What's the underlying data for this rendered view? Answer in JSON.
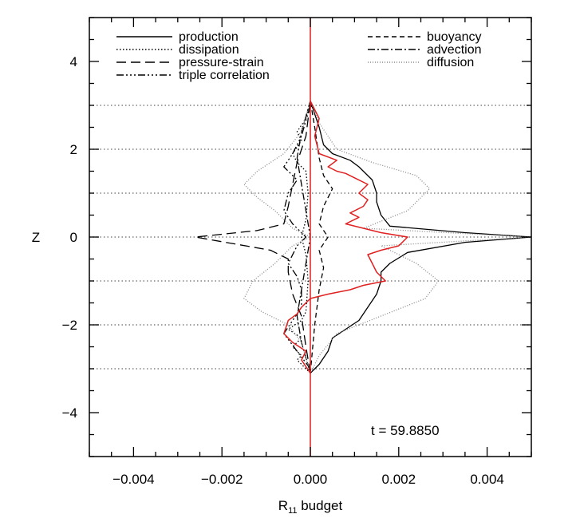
{
  "chart_data": {
    "type": "line",
    "xlabel": "R",
    "xlabel_sub": "11",
    "xlabel_suffix": " budget",
    "ylabel": "Z",
    "xlim": [
      -0.005,
      0.005
    ],
    "ylim": [
      -5,
      5
    ],
    "x_ticks": [
      -0.004,
      -0.002,
      0.0,
      0.002,
      0.004
    ],
    "x_tick_labels": [
      "−0.004",
      "−0.002",
      "0.000",
      "0.002",
      "0.004"
    ],
    "y_ticks": [
      -4,
      -2,
      0,
      2,
      4
    ],
    "y_tick_labels": [
      "−4",
      "−2",
      "0",
      "2",
      "4"
    ],
    "reference_lines_z": [
      -3,
      -2,
      -1,
      0,
      1,
      2,
      3
    ],
    "annotation": "t = 59.8850",
    "legend_placement": "top",
    "series": [
      {
        "name": "production",
        "style": "solid",
        "color": "#000000",
        "points": [
          [
            0,
            -3.1
          ],
          [
            0.0002,
            -2.9
          ],
          [
            0.0004,
            -2.6
          ],
          [
            0.0005,
            -2.3
          ],
          [
            0.0008,
            -2.1
          ],
          [
            0.0011,
            -1.9
          ],
          [
            0.0013,
            -1.6
          ],
          [
            0.0015,
            -1.3
          ],
          [
            0.0016,
            -1.0
          ],
          [
            0.0016,
            -0.8
          ],
          [
            0.0018,
            -0.6
          ],
          [
            0.0022,
            -0.35
          ],
          [
            0.0035,
            -0.12
          ],
          [
            0.005,
            0
          ],
          [
            0.0035,
            0.1
          ],
          [
            0.0018,
            0.25
          ],
          [
            0.0016,
            0.5
          ],
          [
            0.0015,
            0.8
          ],
          [
            0.0015,
            1.0
          ],
          [
            0.0014,
            1.3
          ],
          [
            0.0011,
            1.6
          ],
          [
            0.0009,
            1.75
          ],
          [
            0.0005,
            1.9
          ],
          [
            0.0003,
            2.1
          ],
          [
            0.0002,
            2.5
          ],
          [
            0,
            3.1
          ]
        ]
      },
      {
        "name": "dissipation",
        "style": "dotted",
        "color": "#000000",
        "points": [
          [
            0,
            -3.1
          ],
          [
            -0.0003,
            -2.8
          ],
          [
            -0.0002,
            -2.7
          ],
          [
            -0.0004,
            -2.5
          ],
          [
            -0.0002,
            -2.3
          ],
          [
            -0.0005,
            -2.1
          ],
          [
            -0.0002,
            -1.9
          ],
          [
            -0.0001,
            -1.7
          ],
          [
            -5e-05,
            -1.0
          ],
          [
            -0.0001,
            -0.4
          ],
          [
            -0.0002,
            0
          ],
          [
            -0.0001,
            0.4
          ],
          [
            -5e-05,
            1.0
          ],
          [
            -0.0001,
            1.5
          ],
          [
            -0.0003,
            1.7
          ],
          [
            -0.0004,
            1.9
          ],
          [
            -0.0002,
            2.2
          ],
          [
            -0.0003,
            2.4
          ],
          [
            -0.0001,
            2.7
          ],
          [
            0,
            3.1
          ]
        ]
      },
      {
        "name": "pressure-strain",
        "style": "longdash",
        "color": "#000000",
        "points": [
          [
            0,
            -3.1
          ],
          [
            -0.0001,
            -2.5
          ],
          [
            -0.0002,
            -1.8
          ],
          [
            -0.0004,
            -1.3
          ],
          [
            -0.0005,
            -0.8
          ],
          [
            -0.0005,
            -0.5
          ],
          [
            -0.0009,
            -0.3
          ],
          [
            -0.0026,
            0
          ],
          [
            -0.0012,
            0.15
          ],
          [
            -0.0006,
            0.3
          ],
          [
            -0.0005,
            0.7
          ],
          [
            -0.0004,
            1.2
          ],
          [
            -0.0003,
            1.7
          ],
          [
            -0.0001,
            2.3
          ],
          [
            0,
            3.1
          ]
        ]
      },
      {
        "name": "triple correlation",
        "style": "dashdotdot",
        "color": "#000000",
        "points": [
          [
            0,
            -3.0
          ],
          [
            -0.0003,
            -2.6
          ],
          [
            -0.0006,
            -2.2
          ],
          [
            -0.0004,
            -1.9
          ],
          [
            -0.0002,
            -1.6
          ],
          [
            -0.0002,
            -1.2
          ],
          [
            -0.0003,
            -0.9
          ],
          [
            -0.0005,
            -0.6
          ],
          [
            -0.0003,
            -0.2
          ],
          [
            -0.0001,
            0
          ],
          [
            -0.0004,
            0.3
          ],
          [
            -0.0006,
            0.6
          ],
          [
            -0.0005,
            1.0
          ],
          [
            -0.0003,
            1.3
          ],
          [
            -0.0006,
            1.6
          ],
          [
            -0.0004,
            1.9
          ],
          [
            -0.0002,
            2.3
          ],
          [
            0,
            3.0
          ]
        ]
      },
      {
        "name": "buoyancy",
        "style": "dash",
        "color": "#000000",
        "points": [
          [
            0,
            -3.1
          ],
          [
            0.0001,
            -2.0
          ],
          [
            0.0002,
            -1.2
          ],
          [
            0.0003,
            -0.7
          ],
          [
            0.0002,
            -0.3
          ],
          [
            0.0004,
            0
          ],
          [
            0.0002,
            0.3
          ],
          [
            0.0003,
            0.7
          ],
          [
            0.0005,
            1.1
          ],
          [
            0.0003,
            1.4
          ],
          [
            0.0002,
            1.8
          ],
          [
            0.0001,
            2.5
          ],
          [
            0,
            3.1
          ]
        ]
      },
      {
        "name": "advection",
        "style": "dashdot",
        "color": "#000000",
        "points": [
          [
            0,
            -3.1
          ],
          [
            -0.0002,
            -2.4
          ],
          [
            -0.0003,
            -1.8
          ],
          [
            -0.0002,
            -1.2
          ],
          [
            -0.0001,
            -0.6
          ],
          [
            0,
            0
          ],
          [
            -0.0001,
            0.6
          ],
          [
            -0.0002,
            1.2
          ],
          [
            -0.0003,
            1.8
          ],
          [
            -0.0002,
            2.4
          ],
          [
            0,
            3.1
          ]
        ]
      },
      {
        "name": "diffusion",
        "style": "finedot",
        "color": "#888888",
        "points": [
          [
            0,
            -3.1
          ],
          [
            -0.0002,
            -2.4
          ],
          [
            -0.0005,
            -2.0
          ],
          [
            -0.0011,
            -1.7
          ],
          [
            -0.0015,
            -1.4
          ],
          [
            -0.0013,
            -1.0
          ],
          [
            -0.0008,
            -0.6
          ],
          [
            -0.0004,
            -0.2
          ],
          [
            0,
            0
          ],
          [
            -0.0004,
            0.2
          ],
          [
            -0.0008,
            0.6
          ],
          [
            -0.0012,
            0.9
          ],
          [
            -0.0015,
            1.2
          ],
          [
            -0.0012,
            1.5
          ],
          [
            -0.0006,
            1.9
          ],
          [
            -0.0002,
            2.4
          ],
          [
            0,
            3.1
          ],
          [
            0.0002,
            2.6
          ],
          [
            0.0006,
            2.0
          ],
          [
            0.0014,
            1.7
          ],
          [
            0.0024,
            1.4
          ],
          [
            0.0027,
            1.1
          ],
          [
            0.0022,
            0.6
          ],
          [
            0.0012,
            0.2
          ],
          [
            0.005,
            0
          ],
          [
            0.0016,
            -0.2
          ],
          [
            0.0024,
            -0.6
          ],
          [
            0.0029,
            -1.0
          ],
          [
            0.0026,
            -1.4
          ],
          [
            0.0016,
            -1.8
          ],
          [
            0.0006,
            -2.2
          ],
          [
            0.0002,
            -2.7
          ],
          [
            0,
            -3.1
          ]
        ]
      },
      {
        "name": "",
        "style": "solid",
        "color": "#e02020",
        "points": [
          [
            0,
            -3.1
          ],
          [
            -0.0002,
            -2.8
          ],
          [
            -0.0001,
            -2.6
          ],
          [
            -0.0004,
            -2.4
          ],
          [
            -0.0006,
            -2.2
          ],
          [
            -0.0005,
            -1.9
          ],
          [
            -0.0003,
            -1.75
          ],
          [
            -0.0002,
            -1.6
          ],
          [
            0,
            -1.4
          ],
          [
            0.0004,
            -1.3
          ],
          [
            0.0009,
            -1.2
          ],
          [
            0.0012,
            -1.1
          ],
          [
            0.0017,
            -1.0
          ],
          [
            0.0015,
            -0.8
          ],
          [
            0.0014,
            -0.6
          ],
          [
            0.0013,
            -0.4
          ],
          [
            0.0016,
            -0.3
          ],
          [
            0.002,
            -0.2
          ],
          [
            0.0022,
            0
          ],
          [
            0.0016,
            0.1
          ],
          [
            0.0012,
            0.2
          ],
          [
            0.0008,
            0.3
          ],
          [
            0.0011,
            0.45
          ],
          [
            0.0009,
            0.55
          ],
          [
            0.0012,
            0.7
          ],
          [
            0.0013,
            0.85
          ],
          [
            0.0011,
            1.0
          ],
          [
            0.0013,
            1.2
          ],
          [
            0.001,
            1.35
          ],
          [
            0.0008,
            1.45
          ],
          [
            0.0006,
            1.5
          ],
          [
            0.0004,
            1.6
          ],
          [
            0.0006,
            1.75
          ],
          [
            0.0002,
            1.9
          ],
          [
            0.0001,
            2.3
          ],
          [
            0.0002,
            2.7
          ],
          [
            0,
            3.1
          ]
        ]
      }
    ]
  }
}
